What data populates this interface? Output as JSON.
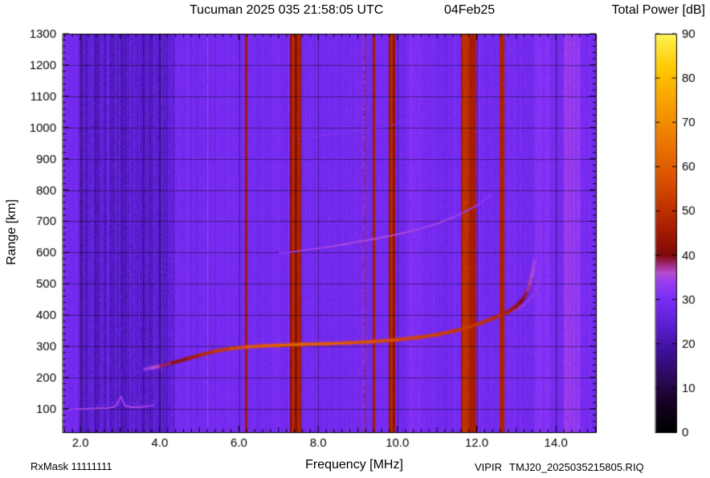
{
  "header": {
    "title": "Tucuman 2025 035 21:58:05 UTC",
    "date": "04Feb25"
  },
  "axes": {
    "x_label": "Frequency [MHz]",
    "y_label": "Range [km]"
  },
  "footer": {
    "rx_mask": "RxMask 11111111",
    "instrument": "VIPIR",
    "file_name": "TMJ20_2025035215805.RIQ"
  },
  "colorbar": {
    "title": "Total Power [dB]",
    "min": 0,
    "max": 90,
    "ticks": [
      0,
      10,
      20,
      30,
      40,
      50,
      60,
      70,
      80,
      90
    ],
    "stops": [
      {
        "v": 0,
        "c": "#000000"
      },
      {
        "v": 6,
        "c": "#14001e"
      },
      {
        "v": 12,
        "c": "#2b0a55"
      },
      {
        "v": 18,
        "c": "#3c1096"
      },
      {
        "v": 24,
        "c": "#5a1fd2"
      },
      {
        "v": 30,
        "c": "#7a2df5"
      },
      {
        "v": 34,
        "c": "#9a3cf0"
      },
      {
        "v": 36,
        "c": "#b44fd2"
      },
      {
        "v": 38,
        "c": "#a02878"
      },
      {
        "v": 40,
        "c": "#800a0a"
      },
      {
        "v": 46,
        "c": "#a81e00"
      },
      {
        "v": 52,
        "c": "#c63800"
      },
      {
        "v": 58,
        "c": "#dd5500"
      },
      {
        "v": 64,
        "c": "#e97000"
      },
      {
        "v": 70,
        "c": "#f28c00"
      },
      {
        "v": 76,
        "c": "#faa800"
      },
      {
        "v": 82,
        "c": "#ffc800"
      },
      {
        "v": 88,
        "c": "#ffe83c"
      },
      {
        "v": 90,
        "c": "#fff560"
      }
    ]
  },
  "chart_data": {
    "type": "heatmap",
    "title": "Tucuman ionogram, 2025 day 035, 21:58:05 UTC (04Feb25)",
    "xlabel": "Frequency [MHz]",
    "ylabel": "Range [km]",
    "zlabel": "Total Power [dB]",
    "x_range_mhz": [
      1.55,
      15.01
    ],
    "y_range_km": [
      25,
      1300
    ],
    "z_range_db": [
      0,
      90
    ],
    "x_ticks": [
      2,
      4,
      6,
      8,
      10,
      12,
      14
    ],
    "x_tick_labels": [
      "2.0",
      "4.0",
      "6.0",
      "8.0",
      "10.0",
      "12.0",
      "14.0"
    ],
    "x_minor_step": 0.2,
    "y_ticks": [
      100,
      200,
      300,
      400,
      500,
      600,
      700,
      800,
      900,
      1000,
      1100,
      1200,
      1300
    ],
    "y_minor_step": 20,
    "grid": true,
    "legend": "none",
    "background": {
      "base_db": 29,
      "column_jitter_db": 2.5,
      "speckle_db": 3,
      "dark_band": {
        "f0": 1.95,
        "f1": 4.38,
        "base_db": 24.5,
        "column_jitter_db": 7,
        "speckle_db": 5.5,
        "dark_col_prob": 0.12,
        "dark_col_delta": -5
      },
      "light_bands": [
        {
          "f0": 13.45,
          "f1": 13.85,
          "delta_db": 2
        },
        {
          "f0": 14.18,
          "f1": 14.62,
          "delta_db": 4
        },
        {
          "f0": 10.25,
          "f1": 10.6,
          "delta_db": 1.5
        }
      ]
    },
    "rfi_stripes_mhz": [
      {
        "f0": 5.18,
        "f1": 5.21,
        "db": 36
      },
      {
        "f0": 6.14,
        "f1": 6.21,
        "db": 45
      },
      {
        "f0": 7.28,
        "f1": 7.56,
        "db": 41
      },
      {
        "f0": 7.32,
        "f1": 7.39,
        "db": 48
      },
      {
        "f0": 7.46,
        "f1": 7.53,
        "db": 48
      },
      {
        "f0": 9.13,
        "f1": 9.17,
        "db": 37
      },
      {
        "f0": 9.37,
        "f1": 9.43,
        "db": 46
      },
      {
        "f0": 9.76,
        "f1": 9.93,
        "db": 43
      },
      {
        "f0": 9.81,
        "f1": 9.88,
        "db": 49
      },
      {
        "f0": 11.6,
        "f1": 11.97,
        "db": 46
      },
      {
        "f0": 11.63,
        "f1": 11.79,
        "db": 50
      },
      {
        "f0": 12.56,
        "f1": 12.68,
        "db": 47
      }
    ],
    "traces": [
      {
        "name": "E-layer echo ~100 km",
        "style": "solid",
        "width": 2.2,
        "alpha": 0.95,
        "glow": false,
        "points": [
          [
            1.68,
            97,
            33
          ],
          [
            1.9,
            99,
            34
          ],
          [
            2.15,
            100,
            35
          ],
          [
            2.4,
            101,
            35
          ],
          [
            2.65,
            102,
            35
          ],
          [
            2.82,
            105,
            35
          ],
          [
            2.92,
            114,
            35
          ],
          [
            2.98,
            131,
            34
          ],
          [
            3.02,
            139,
            34
          ],
          [
            3.06,
            127,
            34
          ],
          [
            3.12,
            110,
            35
          ],
          [
            3.3,
            105,
            35
          ],
          [
            3.5,
            105,
            35
          ],
          [
            3.7,
            108,
            34
          ],
          [
            3.85,
            112,
            34
          ]
        ]
      },
      {
        "name": "E-layer upper spread",
        "style": "dots",
        "width": 1.6,
        "alpha": 0.7,
        "step": 4,
        "jitter": 2,
        "points": [
          [
            2.35,
            112,
            32
          ],
          [
            2.6,
            113,
            32
          ],
          [
            2.85,
            118,
            31
          ],
          [
            3.05,
            124,
            31
          ],
          [
            3.25,
            117,
            31
          ],
          [
            3.5,
            116,
            32
          ],
          [
            3.72,
            121,
            31
          ],
          [
            3.88,
            124,
            31
          ]
        ]
      },
      {
        "name": "E-F retardation connector",
        "style": "dots",
        "width": 1.6,
        "alpha": 0.55,
        "step": 5,
        "jitter": 2,
        "points": [
          [
            3.74,
            125,
            31
          ],
          [
            3.76,
            150,
            31
          ],
          [
            3.77,
            180,
            31
          ],
          [
            3.79,
            212,
            31
          ]
        ]
      },
      {
        "name": "F-region 1st hop O-mode",
        "style": "solid",
        "width": 3.2,
        "alpha": 1,
        "glow": true,
        "points": [
          [
            3.62,
            226,
            33
          ],
          [
            3.8,
            231,
            35
          ],
          [
            4.0,
            236,
            37
          ],
          [
            4.3,
            246,
            40
          ],
          [
            4.7,
            260,
            44
          ],
          [
            5.0,
            271,
            47
          ],
          [
            5.4,
            284,
            51
          ],
          [
            5.8,
            293,
            55
          ],
          [
            6.2,
            298,
            58
          ],
          [
            6.6,
            301,
            60
          ],
          [
            7.0,
            303,
            61
          ],
          [
            7.6,
            306,
            61
          ],
          [
            8.2,
            308,
            60
          ],
          [
            8.8,
            311,
            59
          ],
          [
            9.4,
            315,
            57
          ],
          [
            10.0,
            321,
            56
          ],
          [
            10.5,
            328,
            55
          ],
          [
            11.0,
            337,
            54
          ],
          [
            11.4,
            348,
            53
          ],
          [
            11.8,
            361,
            52
          ],
          [
            12.1,
            374,
            51
          ],
          [
            12.4,
            389,
            50
          ],
          [
            12.65,
            402,
            48
          ],
          [
            12.85,
            415,
            46
          ],
          [
            13.0,
            429,
            44
          ],
          [
            13.1,
            441,
            42
          ],
          [
            13.2,
            457,
            40
          ],
          [
            13.28,
            477,
            38
          ],
          [
            13.34,
            500,
            37
          ],
          [
            13.39,
            525,
            36
          ],
          [
            13.43,
            550,
            35
          ],
          [
            13.46,
            572,
            34
          ]
        ]
      },
      {
        "name": "F-region 1st hop X-mode branch",
        "style": "dots",
        "width": 2,
        "alpha": 0.8,
        "step": 4,
        "jitter": 1.5,
        "points": [
          [
            12.55,
            393,
            38
          ],
          [
            12.8,
            403,
            38
          ],
          [
            13.0,
            415,
            37
          ],
          [
            13.15,
            427,
            36
          ],
          [
            13.3,
            444,
            36
          ],
          [
            13.42,
            463,
            35
          ],
          [
            13.5,
            484,
            35
          ],
          [
            13.56,
            507,
            34
          ],
          [
            13.6,
            530,
            34
          ],
          [
            13.63,
            553,
            33
          ]
        ]
      },
      {
        "name": "critical-frequency cusp spread",
        "style": "dots",
        "width": 2,
        "alpha": 0.75,
        "step": 6,
        "jitter": 3,
        "points": [
          [
            13.46,
            582,
            34
          ],
          [
            13.49,
            612,
            33
          ],
          [
            13.52,
            645,
            33
          ],
          [
            13.55,
            678,
            33
          ],
          [
            13.58,
            712,
            32
          ],
          [
            13.61,
            748,
            32
          ],
          [
            13.64,
            783,
            32
          ]
        ]
      },
      {
        "name": "F-region 2nd hop",
        "style": "solid",
        "width": 2,
        "alpha": 0.9,
        "glow": false,
        "points": [
          [
            7.0,
            597,
            33
          ],
          [
            7.4,
            603,
            34
          ],
          [
            7.8,
            610,
            35
          ],
          [
            8.2,
            617,
            35
          ],
          [
            8.6,
            625,
            36
          ],
          [
            9.0,
            634,
            36
          ],
          [
            9.4,
            643,
            36
          ],
          [
            9.8,
            653,
            36
          ],
          [
            10.2,
            664,
            36
          ],
          [
            10.6,
            677,
            35
          ],
          [
            11.0,
            692,
            35
          ],
          [
            11.4,
            712,
            35
          ],
          [
            11.7,
            730,
            34
          ],
          [
            12.0,
            750,
            34
          ],
          [
            12.2,
            768,
            33
          ],
          [
            12.35,
            785,
            33
          ]
        ]
      },
      {
        "name": "F-region 3rd hop",
        "style": "dots",
        "width": 1.8,
        "alpha": 0.7,
        "step": 4,
        "jitter": 1.5,
        "points": [
          [
            7.5,
            962,
            32
          ],
          [
            7.9,
            970,
            33
          ],
          [
            8.3,
            978,
            33
          ],
          [
            8.7,
            986,
            33
          ],
          [
            9.1,
            993,
            33
          ],
          [
            9.5,
            1001,
            33
          ],
          [
            9.9,
            1009,
            32
          ],
          [
            10.25,
            1017,
            32
          ]
        ]
      },
      {
        "name": "high-range faint multiple",
        "style": "dots",
        "width": 1.8,
        "alpha": 0.6,
        "step": 5,
        "jitter": 2,
        "points": [
          [
            11.95,
            1098,
            32
          ],
          [
            12.2,
            1112,
            32
          ],
          [
            12.45,
            1126,
            32
          ],
          [
            12.7,
            1140,
            31
          ],
          [
            12.95,
            1154,
            31
          ],
          [
            13.2,
            1168,
            31
          ]
        ]
      }
    ]
  }
}
